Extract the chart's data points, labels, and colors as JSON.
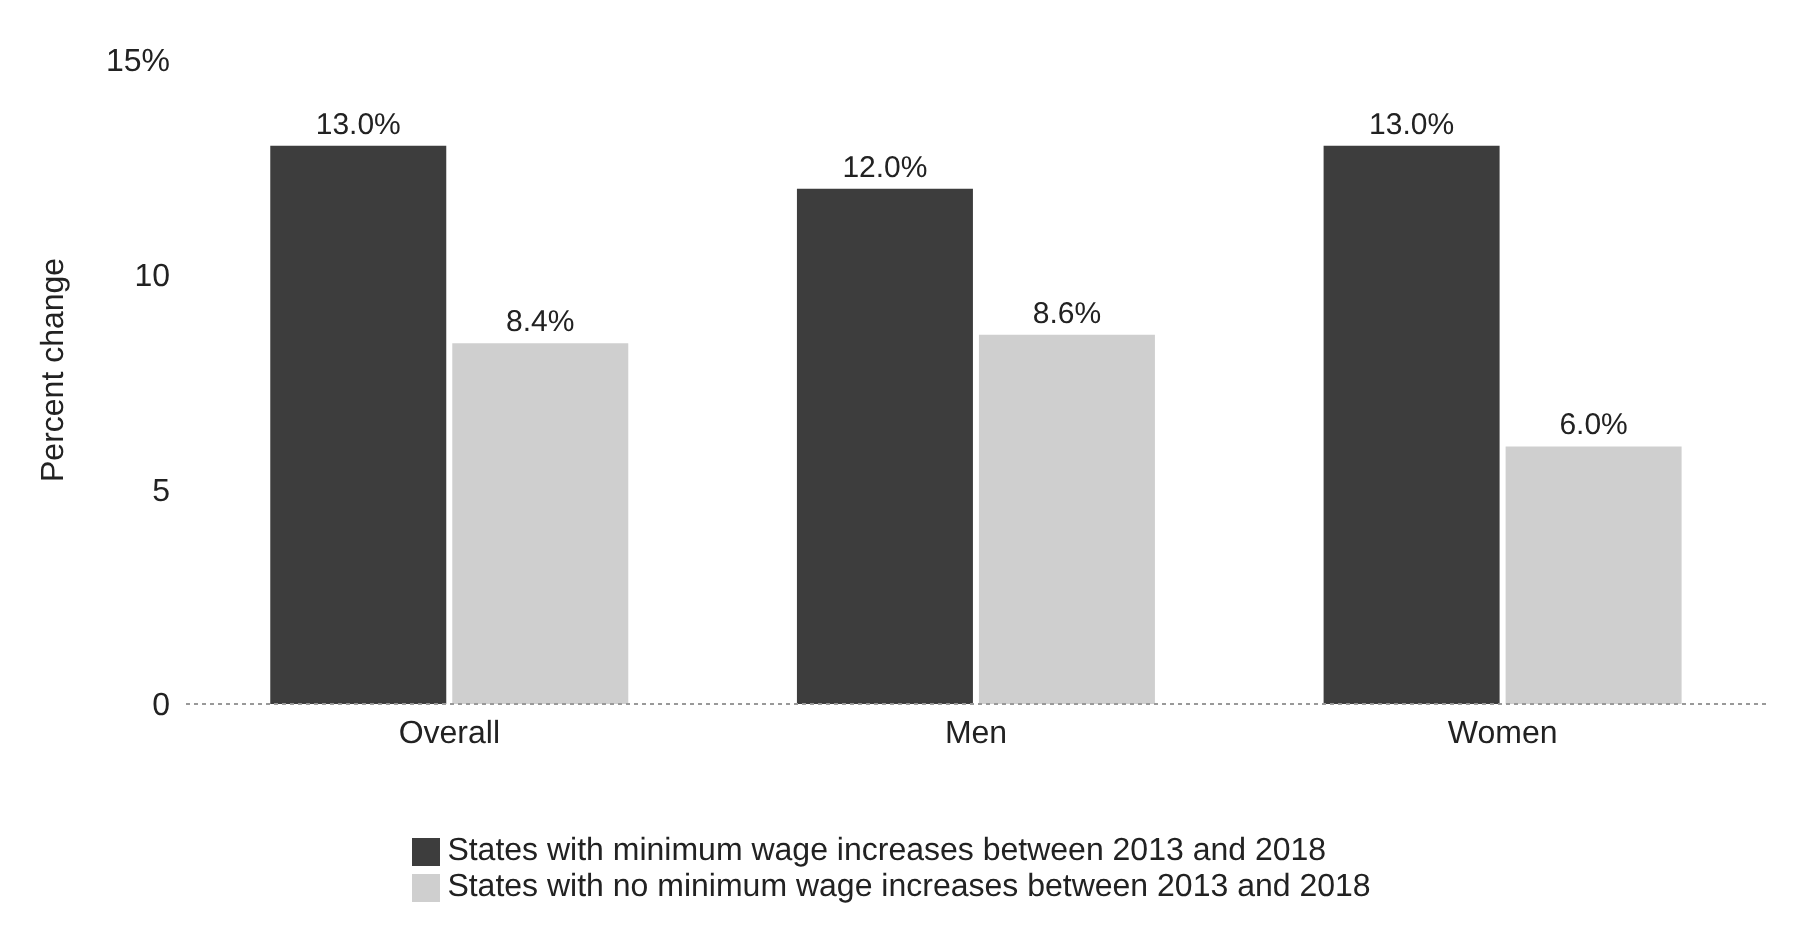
{
  "chart_data": {
    "type": "bar",
    "ylabel": "Percent change",
    "categories": [
      "Overall",
      "Men",
      "Women"
    ],
    "series": [
      {
        "name": "States with minimum wage increases between 2013 and 2018",
        "color": "#3d3d3d",
        "values": [
          13.0,
          12.0,
          13.0
        ],
        "value_labels": [
          "13.0%",
          "12.0%",
          "13.0%"
        ]
      },
      {
        "name": "States with no minimum wage increases between 2013 and 2018",
        "color": "#cfcfcf",
        "values": [
          8.4,
          8.6,
          6.0
        ],
        "value_labels": [
          "8.4%",
          "8.6%",
          "6.0%"
        ]
      }
    ],
    "ylim": [
      0,
      15
    ],
    "yticks": [
      0,
      5,
      10,
      {
        "value": 15,
        "label": "15%"
      }
    ],
    "grid": false,
    "legend": "bottom"
  }
}
